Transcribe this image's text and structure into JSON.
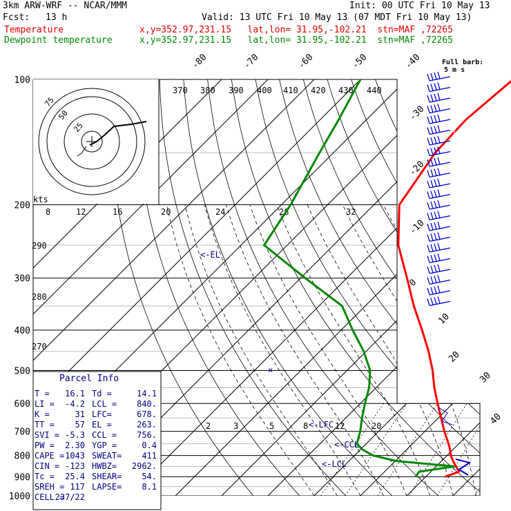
{
  "header": {
    "model": "3km ARW-WRF -- NCAR/MMM",
    "init": "Init: 00 UTC Fri 10 May 13",
    "fcst_label": "Fcst:",
    "fcst_value": "13 h",
    "valid": "Valid: 13 UTC Fri 10 May 13 (07 MDT Fri 10 May 13)",
    "temp_label": "Temperature",
    "temp_info": "x,y=352.97,231.15   lat,lon= 31.95,-102.21  stn=MAF ,72265",
    "dew_label": "Dewpoint temperature",
    "dew_info": "x,y=352.97,231.15   lat,lon= 31.95,-102.21  stn=MAF ,72265"
  },
  "colors": {
    "temperature": "#ff0000",
    "dewpoint": "#008800",
    "axes": "#000000",
    "parcel": "#000080",
    "wind": "#0000cc"
  },
  "chart_data": {
    "type": "line",
    "title": "",
    "y_axis": {
      "label": "",
      "scale": "log",
      "reversed": true,
      "ticks": [
        100,
        200,
        300,
        400,
        500,
        600,
        700,
        800,
        900,
        1000
      ]
    },
    "isotherm_labels": [
      "-80",
      "-70",
      "-60",
      "-50",
      "-40",
      "-30",
      "-20",
      "-10",
      "0",
      "10",
      "20",
      "30",
      "40"
    ],
    "theta_labels": [
      "370",
      "380",
      "390",
      "400",
      "410",
      "420",
      "430",
      "440",
      "290",
      "280",
      "270"
    ],
    "mixing_ratio_labels": [
      "2",
      "3",
      "5",
      "8",
      "12",
      "20"
    ],
    "hodo_speed_labels": [
      "8",
      "12",
      "16",
      "20",
      "24",
      "28",
      "32"
    ],
    "hodo_kts_label": "kts",
    "hodo_ring_labels": [
      "75",
      "50",
      "25"
    ],
    "level_markers": [
      "<-EL",
      "<-LFC",
      "<-CCL",
      "<-LCL"
    ],
    "wind_scale": {
      "label_line1": "Full barb:",
      "label_line2": "5 m s"
    },
    "series": [
      {
        "name": "Temperature",
        "p": [
          900,
          875,
          850,
          825,
          800,
          775,
          750,
          700,
          650,
          600,
          550,
          500,
          450,
          400,
          350,
          300,
          250,
          200,
          150,
          125,
          100
        ],
        "t": [
          14.2,
          16.1,
          14.3,
          12.5,
          10.8,
          9.4,
          7.8,
          4.2,
          0.6,
          -3.3,
          -7.4,
          -11.5,
          -16.5,
          -22.5,
          -29.5,
          -37.0,
          -46.0,
          -54.5,
          -58.0,
          -58.5,
          -57.0
        ]
      },
      {
        "name": "Dewpoint temperature",
        "p": [
          900,
          875,
          850,
          825,
          800,
          775,
          750,
          700,
          650,
          600,
          550,
          500,
          450,
          400,
          350,
          300,
          250,
          200,
          150,
          125,
          100
        ],
        "t": [
          7.8,
          7.5,
          14.0,
          0.2,
          -6.0,
          -9.5,
          -12.0,
          -14.0,
          -16.5,
          -19.0,
          -21.5,
          -25.0,
          -30.5,
          -37.5,
          -45.0,
          -59.0,
          -75.0,
          -78.0,
          -83.0,
          -86.0,
          -90.0
        ]
      }
    ]
  },
  "parcel_info": {
    "title": "Parcel Info",
    "rows": [
      [
        "T  =",
        "16.1",
        "Td =",
        "14.1"
      ],
      [
        "LI =",
        "-4.2",
        "LCL =",
        "840."
      ],
      [
        "K  =",
        "31",
        "LFC=",
        "678."
      ],
      [
        "TT =",
        "57",
        "EL =",
        "263."
      ],
      [
        "SVI =",
        "-5.3",
        "CCL =",
        "756."
      ],
      [
        "PW =",
        "2.30",
        "YGP =",
        "0.4"
      ],
      [
        "CAPE =",
        "1043",
        "SWEAT=",
        "411"
      ],
      [
        "CIN =",
        "-123",
        "HWBZ=",
        "2962."
      ],
      [
        "Tc =",
        "25.4",
        "SHEAR=",
        "54."
      ],
      [
        "SREH =",
        "117",
        "LAPSE=",
        "8.1"
      ],
      [
        "CELL =",
        "237/22",
        "",
        ""
      ]
    ]
  }
}
